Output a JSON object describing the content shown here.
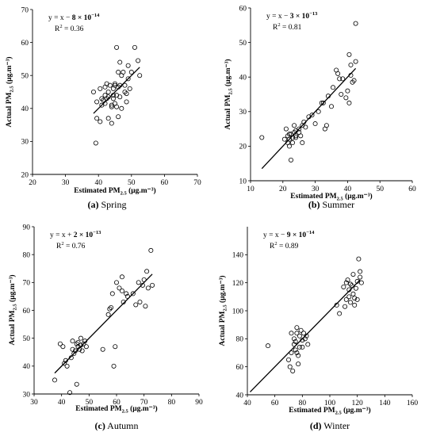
{
  "chart_data": [
    {
      "type": "scatter",
      "caption_tag": "(a)",
      "caption_text": " Spring",
      "equation": {
        "pre": "y = x − ",
        "coef": "8 × 10",
        "exp": "−14"
      },
      "r2": {
        "label": "R",
        "sup": "2",
        "value": " = 0.36"
      },
      "xlabel": {
        "pre": "Estimated PM",
        "sub": "2.5",
        "post": " (μg.m⁻³)"
      },
      "ylabel": {
        "pre": "Actual PM",
        "sub": "2.5",
        "post": " (μg.m⁻³)"
      },
      "xlim": [
        20,
        70
      ],
      "ylim": [
        20,
        70
      ],
      "xticks": [
        20,
        30,
        40,
        50,
        60,
        70
      ],
      "yticks": [
        20,
        30,
        40,
        50,
        60,
        70
      ],
      "fit_line": {
        "x": [
          38.5,
          52.5
        ],
        "y": [
          38.5,
          52.5
        ]
      },
      "points": [
        [
          39.2,
          29.5
        ],
        [
          38.5,
          45
        ],
        [
          39.5,
          42
        ],
        [
          39.5,
          37
        ],
        [
          40.5,
          46
        ],
        [
          40.5,
          36
        ],
        [
          41,
          41
        ],
        [
          41.5,
          42.5
        ],
        [
          42,
          46.5
        ],
        [
          42,
          44
        ],
        [
          42.5,
          47.5
        ],
        [
          42,
          41.5
        ],
        [
          42.5,
          43
        ],
        [
          43,
          37
        ],
        [
          43,
          43.5
        ],
        [
          43.5,
          47
        ],
        [
          44,
          41
        ],
        [
          44,
          40.5
        ],
        [
          44,
          35.5
        ],
        [
          44.5,
          46
        ],
        [
          44.5,
          44
        ],
        [
          44.5,
          43
        ],
        [
          45,
          47.5
        ],
        [
          45,
          41.5
        ],
        [
          45,
          47
        ],
        [
          45.5,
          44
        ],
        [
          45.5,
          58.5
        ],
        [
          46,
          37.5
        ],
        [
          46,
          51
        ],
        [
          46,
          46.5
        ],
        [
          46.5,
          47
        ],
        [
          46.5,
          54
        ],
        [
          46.5,
          43.5
        ],
        [
          47,
          40
        ],
        [
          47,
          50
        ],
        [
          47.5,
          51
        ],
        [
          48,
          45
        ],
        [
          48,
          47
        ],
        [
          48.5,
          42
        ],
        [
          48.5,
          44.5
        ],
        [
          49,
          53
        ],
        [
          49,
          49
        ],
        [
          49.5,
          46
        ],
        [
          50,
          51
        ],
        [
          51,
          58.5
        ],
        [
          52,
          54.5
        ],
        [
          52.5,
          50
        ],
        [
          45.5,
          40.5
        ],
        [
          43,
          45
        ],
        [
          41,
          43
        ]
      ]
    },
    {
      "type": "scatter",
      "caption_tag": "(b)",
      "caption_text": " Summer",
      "equation": {
        "pre": "y = x − ",
        "coef": "3 × 10",
        "exp": "−13"
      },
      "r2": {
        "label": "R",
        "sup": "2",
        "value": " = 0.81"
      },
      "xlabel": {
        "pre": "Estimated PM",
        "sub": "2.5",
        "post": " (μg.m⁻³)"
      },
      "ylabel": {
        "pre": "Actual PM",
        "sub": "2.5",
        "post": " (μg.m⁻³)"
      },
      "xlim": [
        10,
        60
      ],
      "ylim": [
        10,
        60
      ],
      "xticks": [
        10,
        20,
        30,
        40,
        50,
        60
      ],
      "yticks": [
        10,
        20,
        30,
        40,
        50,
        60
      ],
      "fit_line": {
        "x": [
          13.5,
          42.5
        ],
        "y": [
          13.5,
          42.5
        ]
      },
      "points": [
        [
          13.5,
          22.5
        ],
        [
          20.5,
          22
        ],
        [
          21,
          25
        ],
        [
          21.5,
          23
        ],
        [
          21.5,
          21
        ],
        [
          22,
          20
        ],
        [
          22,
          22
        ],
        [
          22.5,
          23.5
        ],
        [
          22.5,
          16
        ],
        [
          23,
          22.5
        ],
        [
          23,
          21
        ],
        [
          23.5,
          24
        ],
        [
          23.5,
          26
        ],
        [
          24,
          24.5
        ],
        [
          24,
          22.5
        ],
        [
          25,
          25
        ],
        [
          25.5,
          23
        ],
        [
          26,
          21
        ],
        [
          26,
          26
        ],
        [
          26.5,
          27
        ],
        [
          27,
          25.5
        ],
        [
          28,
          28.5
        ],
        [
          29,
          29
        ],
        [
          30,
          26.5
        ],
        [
          31,
          30
        ],
        [
          32,
          32.5
        ],
        [
          32.5,
          32.5
        ],
        [
          33,
          25
        ],
        [
          33.5,
          26
        ],
        [
          34,
          34.5
        ],
        [
          35,
          31.5
        ],
        [
          35.5,
          37
        ],
        [
          36.5,
          42
        ],
        [
          37,
          41
        ],
        [
          37.5,
          39.5
        ],
        [
          38,
          35
        ],
        [
          38.5,
          39.5
        ],
        [
          39.5,
          34
        ],
        [
          40,
          36
        ],
        [
          40.5,
          32.5
        ],
        [
          41,
          40.5
        ],
        [
          40.5,
          46.5
        ],
        [
          41,
          43.5
        ],
        [
          41.5,
          38.5
        ],
        [
          42,
          39
        ],
        [
          42.5,
          44.5
        ],
        [
          42.5,
          55.5
        ],
        [
          24,
          23
        ],
        [
          22,
          23.5
        ],
        [
          25,
          24
        ]
      ]
    },
    {
      "type": "scatter",
      "caption_tag": "(c)",
      "caption_text": " Autumn",
      "equation": {
        "pre": "y = x + ",
        "coef": "2 × 10",
        "exp": "−13"
      },
      "r2": {
        "label": "R",
        "sup": "2",
        "value": " = 0.76"
      },
      "xlabel": {
        "pre": "Estimated PM",
        "sub": "2.5",
        "post": " (μg.m⁻³)"
      },
      "ylabel": {
        "pre": "Actual PM",
        "sub": "2.5",
        "post": " (μg.m⁻³)"
      },
      "xlim": [
        30,
        90
      ],
      "ylim": [
        30,
        90
      ],
      "xticks": [
        30,
        40,
        50,
        60,
        70,
        80,
        90
      ],
      "yticks": [
        30,
        40,
        50,
        60,
        70,
        80,
        90
      ],
      "fit_line": {
        "x": [
          37.5,
          73
        ],
        "y": [
          37.5,
          73
        ]
      },
      "points": [
        [
          37.5,
          35
        ],
        [
          39.5,
          48
        ],
        [
          40.5,
          47
        ],
        [
          41,
          41
        ],
        [
          41.5,
          42
        ],
        [
          42,
          40
        ],
        [
          43,
          30.5
        ],
        [
          43.5,
          43
        ],
        [
          44,
          46
        ],
        [
          44.5,
          44.5
        ],
        [
          45,
          45.5
        ],
        [
          45.5,
          33.5
        ],
        [
          45.5,
          48
        ],
        [
          46,
          48.5
        ],
        [
          46.5,
          46
        ],
        [
          47,
          47.5
        ],
        [
          47,
          50
        ],
        [
          47.5,
          45.5
        ],
        [
          48,
          48
        ],
        [
          48.5,
          49
        ],
        [
          49,
          47
        ],
        [
          55,
          46
        ],
        [
          57,
          58.5
        ],
        [
          57.5,
          60.5
        ],
        [
          58,
          61
        ],
        [
          58.5,
          66
        ],
        [
          59,
          40
        ],
        [
          59.5,
          47
        ],
        [
          60,
          70
        ],
        [
          61,
          68
        ],
        [
          62,
          67
        ],
        [
          62,
          72
        ],
        [
          62.5,
          63
        ],
        [
          63.5,
          66
        ],
        [
          64,
          65
        ],
        [
          66,
          66
        ],
        [
          67,
          62
        ],
        [
          68,
          70
        ],
        [
          68.5,
          63
        ],
        [
          69.5,
          69
        ],
        [
          70,
          71
        ],
        [
          70.5,
          61.5
        ],
        [
          71,
          74
        ],
        [
          71.5,
          68
        ],
        [
          72.5,
          81.5
        ],
        [
          73,
          69
        ],
        [
          44,
          49
        ],
        [
          46,
          47
        ]
      ]
    },
    {
      "type": "scatter",
      "caption_tag": "(d)",
      "caption_text": " Winter",
      "equation": {
        "pre": "y = x − ",
        "coef": "9 × 10",
        "exp": "−14"
      },
      "r2": {
        "label": "R",
        "sup": "2",
        "value": " = 0.89"
      },
      "xlabel": {
        "pre": "Estimated PM",
        "sub": "2.5",
        "post": " (μg.m⁻³)"
      },
      "ylabel": {
        "pre": "Actual PM",
        "sub": "2.5",
        "post": " (μg.m⁻³)"
      },
      "xlim": [
        40,
        160
      ],
      "ylim": [
        40,
        160
      ],
      "xticks": [
        40,
        60,
        80,
        100,
        120,
        140,
        160
      ],
      "yticks": [
        40,
        60,
        80,
        100,
        120,
        140
      ],
      "fit_line": {
        "x": [
          42,
          122
        ],
        "y": [
          42,
          122
        ]
      },
      "points": [
        [
          55,
          75
        ],
        [
          70,
          65
        ],
        [
          71,
          60
        ],
        [
          72,
          70
        ],
        [
          72,
          84
        ],
        [
          73,
          57
        ],
        [
          74,
          80
        ],
        [
          75,
          78
        ],
        [
          75,
          72
        ],
        [
          76,
          84
        ],
        [
          76,
          88
        ],
        [
          77,
          68
        ],
        [
          77,
          62
        ],
        [
          78,
          74
        ],
        [
          78,
          82
        ],
        [
          79,
          86
        ],
        [
          80,
          79
        ],
        [
          80,
          74
        ],
        [
          81,
          84
        ],
        [
          82,
          80
        ],
        [
          83,
          82
        ],
        [
          84,
          76
        ],
        [
          105,
          104
        ],
        [
          107,
          98
        ],
        [
          110,
          117
        ],
        [
          111,
          103
        ],
        [
          112,
          108
        ],
        [
          112,
          120
        ],
        [
          113,
          122
        ],
        [
          114,
          110
        ],
        [
          114,
          115
        ],
        [
          115,
          106
        ],
        [
          115,
          119
        ],
        [
          116,
          118
        ],
        [
          117,
          112
        ],
        [
          117,
          126
        ],
        [
          118,
          104
        ],
        [
          118,
          109
        ],
        [
          119,
          116
        ],
        [
          120,
          121
        ],
        [
          120,
          108
        ],
        [
          121,
          137
        ],
        [
          122,
          124
        ],
        [
          122,
          128
        ],
        [
          123,
          120
        ],
        [
          74,
          76
        ],
        [
          76,
          70
        ]
      ]
    }
  ]
}
